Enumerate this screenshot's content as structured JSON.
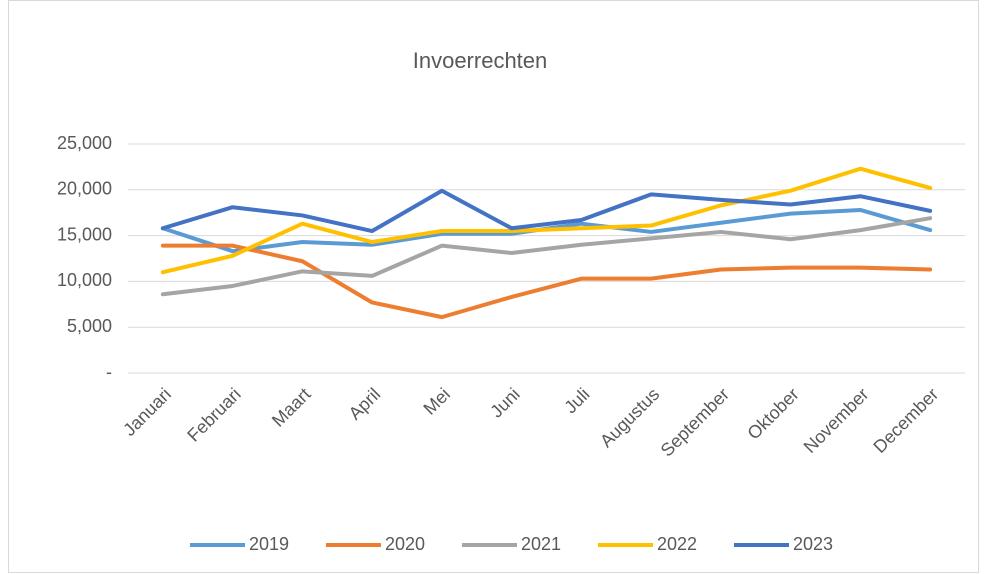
{
  "chart_data": {
    "type": "line",
    "title": "Invoerrechten",
    "categories": [
      "Januari",
      "Februari",
      "Maart",
      "April",
      "Mei",
      "Juni",
      "Juli",
      "Augustus",
      "September",
      "Oktober",
      "November",
      "December"
    ],
    "series": [
      {
        "name": "2019",
        "color": "#5b9bd5",
        "values": [
          15800,
          13300,
          14300,
          14000,
          15200,
          15200,
          16300,
          15400,
          16400,
          17400,
          17800,
          15600
        ]
      },
      {
        "name": "2020",
        "color": "#ed7d31",
        "values": [
          13900,
          13900,
          12200,
          7700,
          6100,
          8300,
          10300,
          10300,
          11300,
          11500,
          11500,
          11300
        ]
      },
      {
        "name": "2021",
        "color": "#a5a5a5",
        "values": [
          8600,
          9500,
          11100,
          10600,
          13900,
          13100,
          14000,
          14700,
          15400,
          14600,
          15600,
          16900
        ]
      },
      {
        "name": "2022",
        "color": "#ffc000",
        "values": [
          11000,
          12800,
          16300,
          14300,
          15500,
          15500,
          15800,
          16100,
          18300,
          19900,
          22300,
          20200
        ]
      },
      {
        "name": "2023",
        "color": "#4472c4",
        "values": [
          15800,
          18100,
          17200,
          15500,
          19900,
          15800,
          16700,
          19500,
          18900,
          18400,
          19300,
          17700
        ]
      }
    ],
    "ylim": [
      0,
      25000
    ],
    "yticks": [
      {
        "value": 0,
        "label": "-"
      },
      {
        "value": 5000,
        "label": "5,000"
      },
      {
        "value": 10000,
        "label": "10,000"
      },
      {
        "value": 15000,
        "label": "15,000"
      },
      {
        "value": 20000,
        "label": "20,000"
      },
      {
        "value": 25000,
        "label": "25,000"
      }
    ],
    "grid": true,
    "legend": "bottom"
  }
}
